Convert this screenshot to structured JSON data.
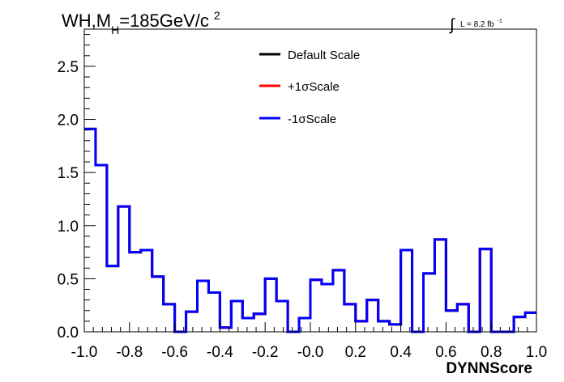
{
  "chart_data": {
    "type": "line",
    "step": true,
    "title_prefix": "WH,M",
    "title_subscript": "H",
    "title_value": "=185GeV/c",
    "title_superscript": "2",
    "lumi_integral": "∫",
    "lumi_text": "L = 8.2 fb",
    "lumi_superscript": "-1",
    "xlabel": "DYNNScore",
    "ylabel": "",
    "xlim": [
      -1.0,
      1.0
    ],
    "ylim": [
      0.0,
      2.85
    ],
    "x_ticks": [
      -1.0,
      -0.8,
      -0.6,
      -0.4,
      -0.2,
      0.0,
      0.2,
      0.4,
      0.6,
      0.8,
      1.0
    ],
    "x_tick_labels": [
      "-1.0",
      "-0.8",
      "-0.6",
      "-0.4",
      "-0.2",
      "-0.0",
      "0.2",
      "0.4",
      "0.6",
      "0.8",
      "1.0"
    ],
    "y_ticks": [
      0.0,
      0.5,
      1.0,
      1.5,
      2.0,
      2.5
    ],
    "y_tick_labels": [
      "0.0",
      "0.5",
      "1.0",
      "1.5",
      "2.0",
      "2.5"
    ],
    "grid": false,
    "legend_position": "top-center",
    "bin_edges": [
      -1.0,
      -0.95,
      -0.9,
      -0.85,
      -0.8,
      -0.75,
      -0.7,
      -0.65,
      -0.6,
      -0.55,
      -0.5,
      -0.45,
      -0.4,
      -0.35,
      -0.3,
      -0.25,
      -0.2,
      -0.15,
      -0.1,
      -0.05,
      0.0,
      0.05,
      0.1,
      0.15,
      0.2,
      0.25,
      0.3,
      0.35,
      0.4,
      0.45,
      0.5,
      0.55,
      0.6,
      0.65,
      0.7,
      0.75,
      0.8,
      0.85,
      0.9,
      0.95,
      1.0
    ],
    "series": [
      {
        "name": "Default Scale",
        "color": "#000000",
        "values": [
          1.91,
          1.57,
          0.62,
          1.18,
          0.75,
          0.77,
          0.52,
          0.26,
          0.0,
          0.19,
          0.48,
          0.37,
          0.04,
          0.29,
          0.13,
          0.17,
          0.5,
          0.29,
          0.0,
          0.13,
          0.49,
          0.45,
          0.58,
          0.26,
          0.1,
          0.3,
          0.1,
          0.07,
          0.77,
          0.0,
          0.55,
          0.87,
          0.2,
          0.26,
          0.0,
          0.78,
          0.0,
          0.0,
          0.14,
          0.18
        ]
      },
      {
        "name": "+1σScale",
        "color": "#ff0000",
        "values": [
          1.91,
          1.57,
          0.62,
          1.18,
          0.75,
          0.77,
          0.52,
          0.26,
          0.0,
          0.19,
          0.48,
          0.37,
          0.04,
          0.29,
          0.13,
          0.17,
          0.5,
          0.29,
          0.0,
          0.13,
          0.49,
          0.45,
          0.58,
          0.26,
          0.1,
          0.3,
          0.1,
          0.07,
          0.77,
          0.0,
          0.55,
          0.87,
          0.2,
          0.26,
          0.0,
          0.78,
          0.0,
          0.0,
          0.14,
          0.18
        ]
      },
      {
        "name": "-1σScale",
        "color": "#0000ff",
        "values": [
          1.91,
          1.57,
          0.62,
          1.18,
          0.75,
          0.77,
          0.52,
          0.26,
          0.0,
          0.19,
          0.48,
          0.37,
          0.04,
          0.29,
          0.13,
          0.17,
          0.5,
          0.29,
          0.0,
          0.13,
          0.49,
          0.45,
          0.58,
          0.26,
          0.1,
          0.3,
          0.1,
          0.07,
          0.77,
          0.0,
          0.55,
          0.87,
          0.2,
          0.26,
          0.0,
          0.78,
          0.0,
          0.0,
          0.14,
          0.18
        ]
      }
    ]
  }
}
